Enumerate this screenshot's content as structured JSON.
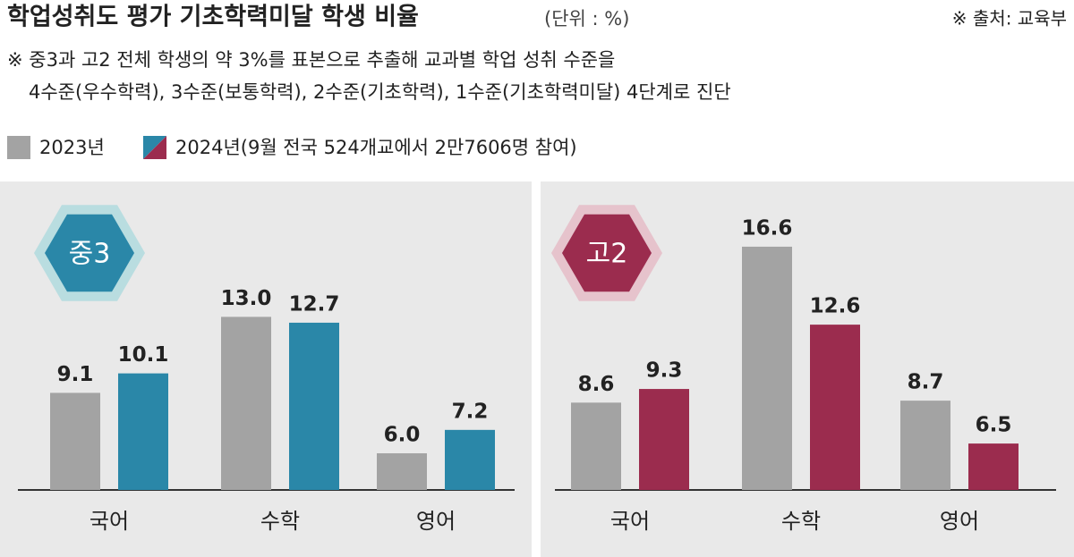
{
  "header": {
    "title": "학업성취도 평가 기초학력미달 학생 비율",
    "unit": "(단위 : %)",
    "source": "※ 출처: 교육부",
    "note": [
      "※ 중3과 고2 전체 학생의 약 3%를 표본으로 추출해 교과별 학업 성취 수준을",
      "4수준(우수학력), 3수준(보통학력), 2수준(기초학력), 1수준(기초학력미달) 4단계로 진단"
    ]
  },
  "chart_data": [
    {
      "type": "bar",
      "title": "중3",
      "badge_color": "#2a87a8",
      "badge_ring": "#b9dde0",
      "categories": [
        "국어",
        "수학",
        "영어"
      ],
      "series": [
        {
          "name": "2023년",
          "color": "#a3a3a3",
          "values": [
            9.1,
            13.0,
            6.0
          ],
          "value_labels": [
            "9.1",
            "13.0",
            "6.0"
          ]
        },
        {
          "name": "2024년(9월 전국 524개교에서 2만7606명 참여)",
          "color": "#2a87a8",
          "values": [
            10.1,
            12.7,
            7.2
          ],
          "value_labels": [
            "10.1",
            "12.7",
            "7.2"
          ]
        }
      ]
    },
    {
      "type": "bar",
      "title": "고2",
      "badge_color": "#9b2c4e",
      "badge_ring": "#e6c3cc",
      "categories": [
        "국어",
        "수학",
        "영어"
      ],
      "series": [
        {
          "color": "#a3a3a3",
          "values": [
            8.6,
            16.6,
            8.7
          ],
          "value_labels": [
            "8.6",
            "16.6",
            "8.7"
          ]
        },
        {
          "color": "#9b2c4e",
          "values": [
            9.3,
            12.6,
            6.5
          ],
          "value_labels": [
            "9.3",
            "12.6",
            "6.5"
          ]
        }
      ]
    }
  ]
}
